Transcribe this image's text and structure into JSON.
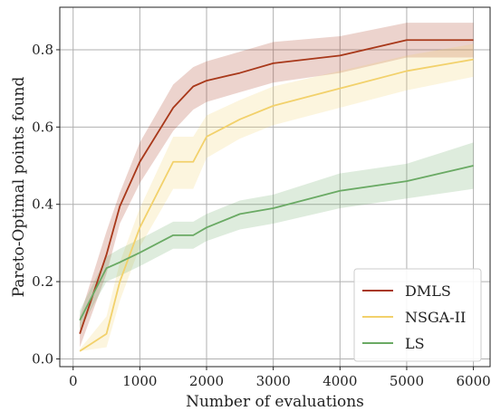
{
  "chart_data": {
    "type": "line",
    "title": "",
    "xlabel": "Number of evaluations",
    "ylabel": "Pareto-Optimal points found",
    "xlim": [
      -200,
      6250
    ],
    "ylim": [
      -0.02,
      0.91
    ],
    "xticks": [
      0,
      1000,
      2000,
      3000,
      4000,
      5000,
      6000
    ],
    "yticks": [
      0.0,
      0.2,
      0.4,
      0.6,
      0.8
    ],
    "xtick_labels": [
      "0",
      "1000",
      "2000",
      "3000",
      "4000",
      "5000",
      "6000"
    ],
    "ytick_labels": [
      "0.0",
      "0.2",
      "0.4",
      "0.6",
      "0.8"
    ],
    "grid": true,
    "legend_position": "lower-right",
    "series": [
      {
        "name": "DMLS",
        "color": "#a8381a",
        "x": [
          100,
          500,
          700,
          1000,
          1500,
          1800,
          2000,
          2500,
          3000,
          4000,
          5000,
          6000
        ],
        "y": [
          0.065,
          0.27,
          0.395,
          0.51,
          0.65,
          0.705,
          0.72,
          0.74,
          0.765,
          0.785,
          0.825,
          0.825
        ],
        "lower": [
          0.03,
          0.22,
          0.35,
          0.455,
          0.59,
          0.645,
          0.665,
          0.69,
          0.715,
          0.74,
          0.78,
          0.78
        ],
        "upper": [
          0.11,
          0.33,
          0.43,
          0.56,
          0.71,
          0.755,
          0.77,
          0.795,
          0.82,
          0.835,
          0.87,
          0.87
        ]
      },
      {
        "name": "NSGA-II",
        "color": "#f2d16b",
        "x": [
          100,
          500,
          700,
          1000,
          1500,
          1800,
          2000,
          2500,
          3000,
          4000,
          5000,
          6000
        ],
        "y": [
          0.02,
          0.065,
          0.2,
          0.34,
          0.51,
          0.51,
          0.575,
          0.62,
          0.655,
          0.7,
          0.745,
          0.775
        ],
        "lower": [
          0.02,
          0.03,
          0.15,
          0.29,
          0.44,
          0.44,
          0.52,
          0.57,
          0.605,
          0.65,
          0.695,
          0.73
        ],
        "upper": [
          0.025,
          0.11,
          0.25,
          0.39,
          0.575,
          0.575,
          0.63,
          0.67,
          0.705,
          0.745,
          0.785,
          0.815
        ]
      },
      {
        "name": "LS",
        "color": "#6aaa64",
        "x": [
          100,
          500,
          700,
          1000,
          1500,
          1800,
          2000,
          2500,
          3000,
          4000,
          5000,
          6000
        ],
        "y": [
          0.1,
          0.235,
          0.25,
          0.275,
          0.32,
          0.32,
          0.34,
          0.375,
          0.39,
          0.435,
          0.46,
          0.5
        ],
        "lower": [
          0.075,
          0.2,
          0.215,
          0.24,
          0.285,
          0.285,
          0.305,
          0.335,
          0.35,
          0.39,
          0.415,
          0.44
        ],
        "upper": [
          0.125,
          0.265,
          0.285,
          0.31,
          0.355,
          0.355,
          0.375,
          0.41,
          0.425,
          0.48,
          0.505,
          0.56
        ]
      }
    ]
  }
}
